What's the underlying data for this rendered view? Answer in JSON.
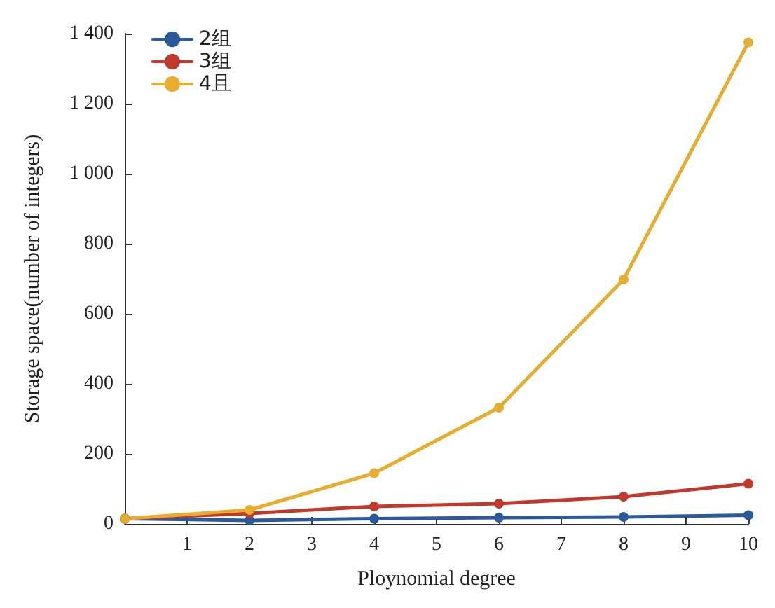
{
  "chart_data": {
    "type": "line",
    "xlabel": "Ploynomial degree",
    "ylabel": "Storage space(number of integers)",
    "x": [
      0,
      2,
      4,
      6,
      8,
      10
    ],
    "series": [
      {
        "name": "2组",
        "color": "#2a5a9a",
        "values": [
          15,
          10,
          15,
          18,
          20,
          25
        ]
      },
      {
        "name": "3组",
        "color": "#c0392b",
        "values": [
          15,
          30,
          50,
          58,
          78,
          115
        ]
      },
      {
        "name": "4且",
        "color": "#e6ad2e",
        "values": [
          15,
          40,
          145,
          332,
          698,
          1375
        ]
      }
    ],
    "xlim": [
      0,
      10
    ],
    "xticks": [
      1,
      2,
      3,
      4,
      5,
      6,
      7,
      8,
      9,
      10
    ],
    "ylim": [
      0,
      1400
    ],
    "yticks": [
      0,
      200,
      400,
      600,
      800,
      {
        "value": 1000,
        "label": "1 000"
      },
      {
        "value": 1200,
        "label": "1 200"
      },
      {
        "value": 1400,
        "label": "1 400"
      }
    ],
    "grid": false,
    "legend": "top left",
    "marker": "circle",
    "line_style": "solid"
  }
}
